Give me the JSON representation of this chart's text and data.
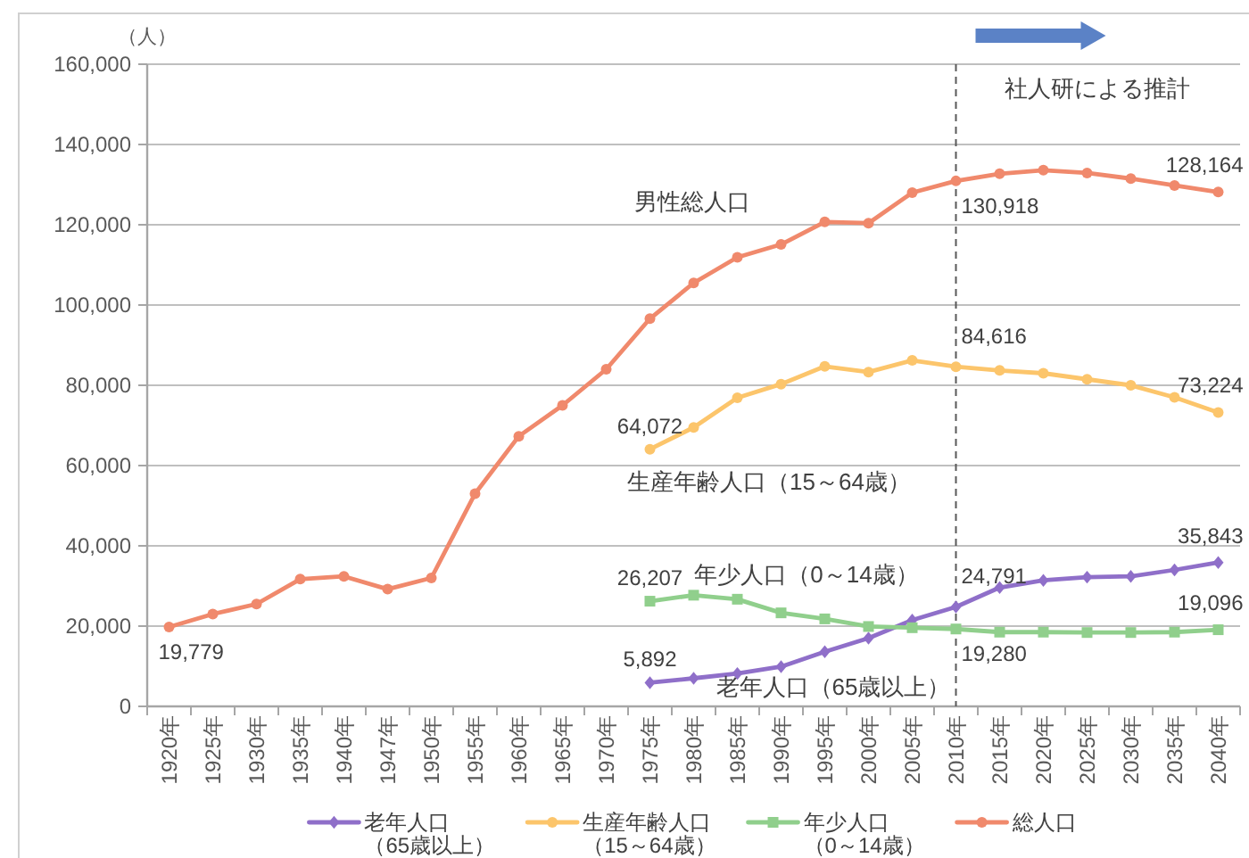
{
  "chart_data": {
    "type": "line",
    "ylabel": "（人）",
    "categories": [
      "1920年",
      "1925年",
      "1930年",
      "1935年",
      "1940年",
      "1947年",
      "1950年",
      "1955年",
      "1960年",
      "1965年",
      "1970年",
      "1975年",
      "1980年",
      "1985年",
      "1990年",
      "1995年",
      "2000年",
      "2005年",
      "2010年",
      "2015年",
      "2020年",
      "2025年",
      "2030年",
      "2035年",
      "2040年"
    ],
    "series": [
      {
        "name": "老年人口（65歳以上）",
        "color": "#8f6fc9",
        "marker": "diamond",
        "values": [
          null,
          null,
          null,
          null,
          null,
          null,
          null,
          null,
          null,
          null,
          null,
          5892,
          7000,
          8200,
          9900,
          13600,
          17000,
          21500,
          24791,
          29600,
          31400,
          32200,
          32400,
          34000,
          35843
        ],
        "value_labels": [
          null,
          null,
          null,
          null,
          null,
          null,
          null,
          null,
          null,
          null,
          null,
          "5,892",
          null,
          null,
          null,
          null,
          null,
          null,
          "24,791",
          null,
          null,
          null,
          null,
          null,
          "35,843"
        ]
      },
      {
        "name": "生産年齢人口（15～64歳）",
        "color": "#fcc56b",
        "marker": "circle",
        "values": [
          null,
          null,
          null,
          null,
          null,
          null,
          null,
          null,
          null,
          null,
          null,
          64072,
          69500,
          76900,
          80300,
          84700,
          83300,
          86200,
          84616,
          83700,
          83000,
          81500,
          80000,
          77000,
          73224
        ],
        "value_labels": [
          null,
          null,
          null,
          null,
          null,
          null,
          null,
          null,
          null,
          null,
          null,
          "64,072",
          null,
          null,
          null,
          null,
          null,
          null,
          "84,616",
          null,
          null,
          null,
          null,
          null,
          "73,224"
        ]
      },
      {
        "name": "年少人口（0～14歳）",
        "color": "#90cf8c",
        "marker": "square",
        "values": [
          null,
          null,
          null,
          null,
          null,
          null,
          null,
          null,
          null,
          null,
          null,
          26207,
          27700,
          26700,
          23300,
          21800,
          19900,
          19600,
          19280,
          18500,
          18500,
          18400,
          18400,
          18500,
          19096
        ],
        "value_labels": [
          null,
          null,
          null,
          null,
          null,
          null,
          null,
          null,
          null,
          null,
          null,
          "26,207",
          null,
          null,
          null,
          null,
          null,
          null,
          "19,280",
          null,
          null,
          null,
          null,
          null,
          "19,096"
        ]
      },
      {
        "name": "総人口",
        "color": "#f0896c",
        "marker": "circle",
        "values": [
          19779,
          23000,
          25500,
          31700,
          32400,
          29200,
          32000,
          53000,
          67300,
          75000,
          84000,
          96600,
          105500,
          111900,
          115100,
          120700,
          120400,
          128000,
          130918,
          132700,
          133600,
          132900,
          131500,
          129800,
          128164
        ],
        "value_labels": [
          "19,779",
          null,
          null,
          null,
          null,
          null,
          null,
          null,
          null,
          null,
          null,
          null,
          null,
          null,
          null,
          null,
          null,
          null,
          "130,918",
          null,
          null,
          null,
          null,
          null,
          "128,164"
        ]
      }
    ],
    "ylim": [
      0,
      160000
    ],
    "yticks": [
      {
        "value": 0,
        "label": "0"
      },
      {
        "value": 20000,
        "label": "20,000"
      },
      {
        "value": 40000,
        "label": "40,000"
      },
      {
        "value": 60000,
        "label": "60,000"
      },
      {
        "value": 80000,
        "label": "80,000"
      },
      {
        "value": 100000,
        "label": "100,000"
      },
      {
        "value": 120000,
        "label": "120,000"
      },
      {
        "value": 140000,
        "label": "140,000"
      },
      {
        "value": 160000,
        "label": "160,000"
      }
    ],
    "grid": "y",
    "legend": "bottom",
    "ref_lines": [
      {
        "axis": "x",
        "value": "2010年",
        "label": "社人研による推計",
        "line_style": "dashed",
        "color": "#595959"
      }
    ],
    "annotations": [
      "男性総人口",
      "生産年齢人口（15～64歳）",
      "年少人口（0～14歳）",
      "老年人口（65歳以上）"
    ]
  }
}
